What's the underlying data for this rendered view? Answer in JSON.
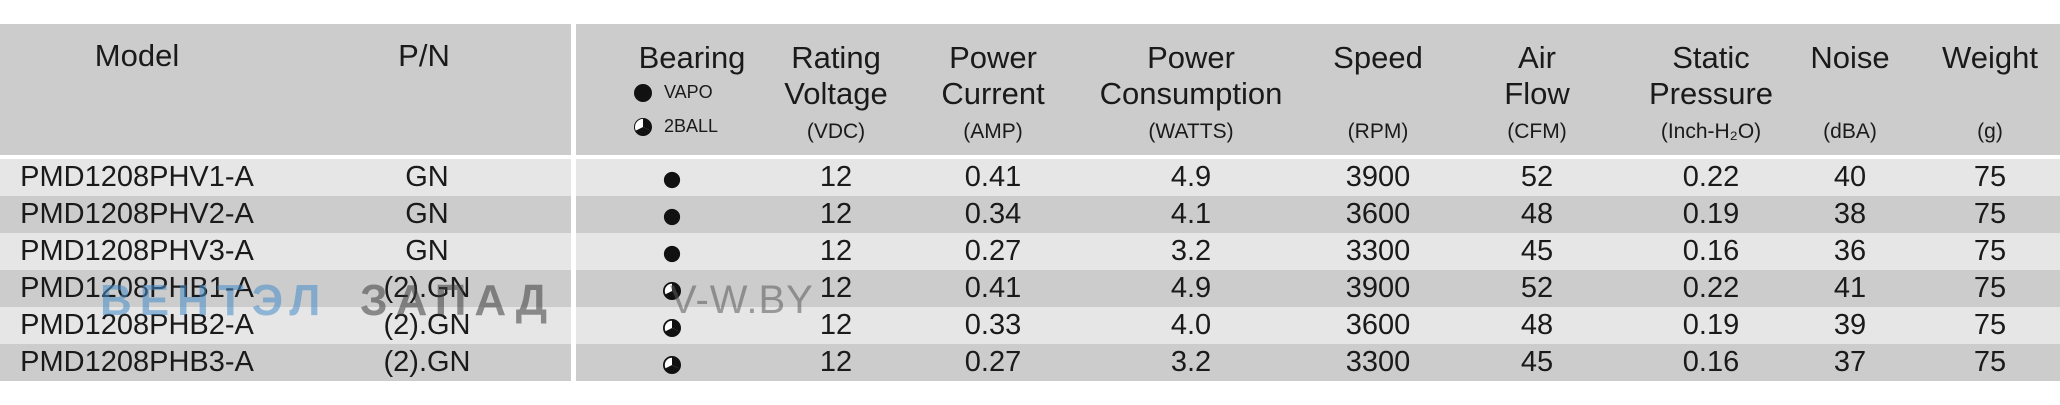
{
  "columns": {
    "model": {
      "name": "Model"
    },
    "pn": {
      "name": "P/N"
    },
    "bearing": {
      "name": "Bearing",
      "legend": [
        {
          "symbol": "filled-circle-icon",
          "label": "VAPO"
        },
        {
          "symbol": "ball-bearing-icon",
          "label": "2BALL"
        }
      ]
    },
    "voltage": {
      "line1": "Rating",
      "line2": "Voltage",
      "unit": "(VDC)"
    },
    "current": {
      "line1": "Power",
      "line2": "Current",
      "unit": "(AMP)"
    },
    "consumption": {
      "line1": "Power",
      "line2": "Consumption",
      "unit": "(WATTS)"
    },
    "speed": {
      "line1": "Speed",
      "unit": "(RPM)"
    },
    "airflow": {
      "line1": "Air",
      "line2": "Flow",
      "unit": "(CFM)"
    },
    "pressure": {
      "line1": "Static",
      "line2": "Pressure",
      "unit": "(Inch-H₂O)"
    },
    "noise": {
      "line1": "Noise",
      "unit": "(dBA)"
    },
    "weight": {
      "line1": "Weight",
      "unit": "(g)"
    }
  },
  "rows": [
    {
      "model": "PMD1208PHV1-A",
      "pn": "GN",
      "bearing": "VAPO",
      "voltage": "12",
      "current": "0.41",
      "consumption": "4.9",
      "speed": "3900",
      "airflow": "52",
      "pressure": "0.22",
      "noise": "40",
      "weight": "75"
    },
    {
      "model": "PMD1208PHV2-A",
      "pn": "GN",
      "bearing": "VAPO",
      "voltage": "12",
      "current": "0.34",
      "consumption": "4.1",
      "speed": "3600",
      "airflow": "48",
      "pressure": "0.19",
      "noise": "38",
      "weight": "75"
    },
    {
      "model": "PMD1208PHV3-A",
      "pn": "GN",
      "bearing": "VAPO",
      "voltage": "12",
      "current": "0.27",
      "consumption": "3.2",
      "speed": "3300",
      "airflow": "45",
      "pressure": "0.16",
      "noise": "36",
      "weight": "75"
    },
    {
      "model": "PMD1208PHB1-A",
      "pn": "(2).GN",
      "bearing": "2BALL",
      "voltage": "12",
      "current": "0.41",
      "consumption": "4.9",
      "speed": "3900",
      "airflow": "52",
      "pressure": "0.22",
      "noise": "41",
      "weight": "75"
    },
    {
      "model": "PMD1208PHB2-A",
      "pn": "(2).GN",
      "bearing": "2BALL",
      "voltage": "12",
      "current": "0.33",
      "consumption": "4.0",
      "speed": "3600",
      "airflow": "48",
      "pressure": "0.19",
      "noise": "39",
      "weight": "75"
    },
    {
      "model": "PMD1208PHB3-A",
      "pn": "(2).GN",
      "bearing": "2BALL",
      "voltage": "12",
      "current": "0.27",
      "consumption": "3.2",
      "speed": "3300",
      "airflow": "45",
      "pressure": "0.16",
      "noise": "37",
      "weight": "75"
    }
  ],
  "watermark": {
    "part1": "ВЕНТЭЛ",
    "part2": "ЗАПАД",
    "part3": "V-W.BY"
  },
  "colors": {
    "header_bg": "#cccccc",
    "row_light": "#e6e6e6",
    "row_dark": "#cccccc"
  }
}
